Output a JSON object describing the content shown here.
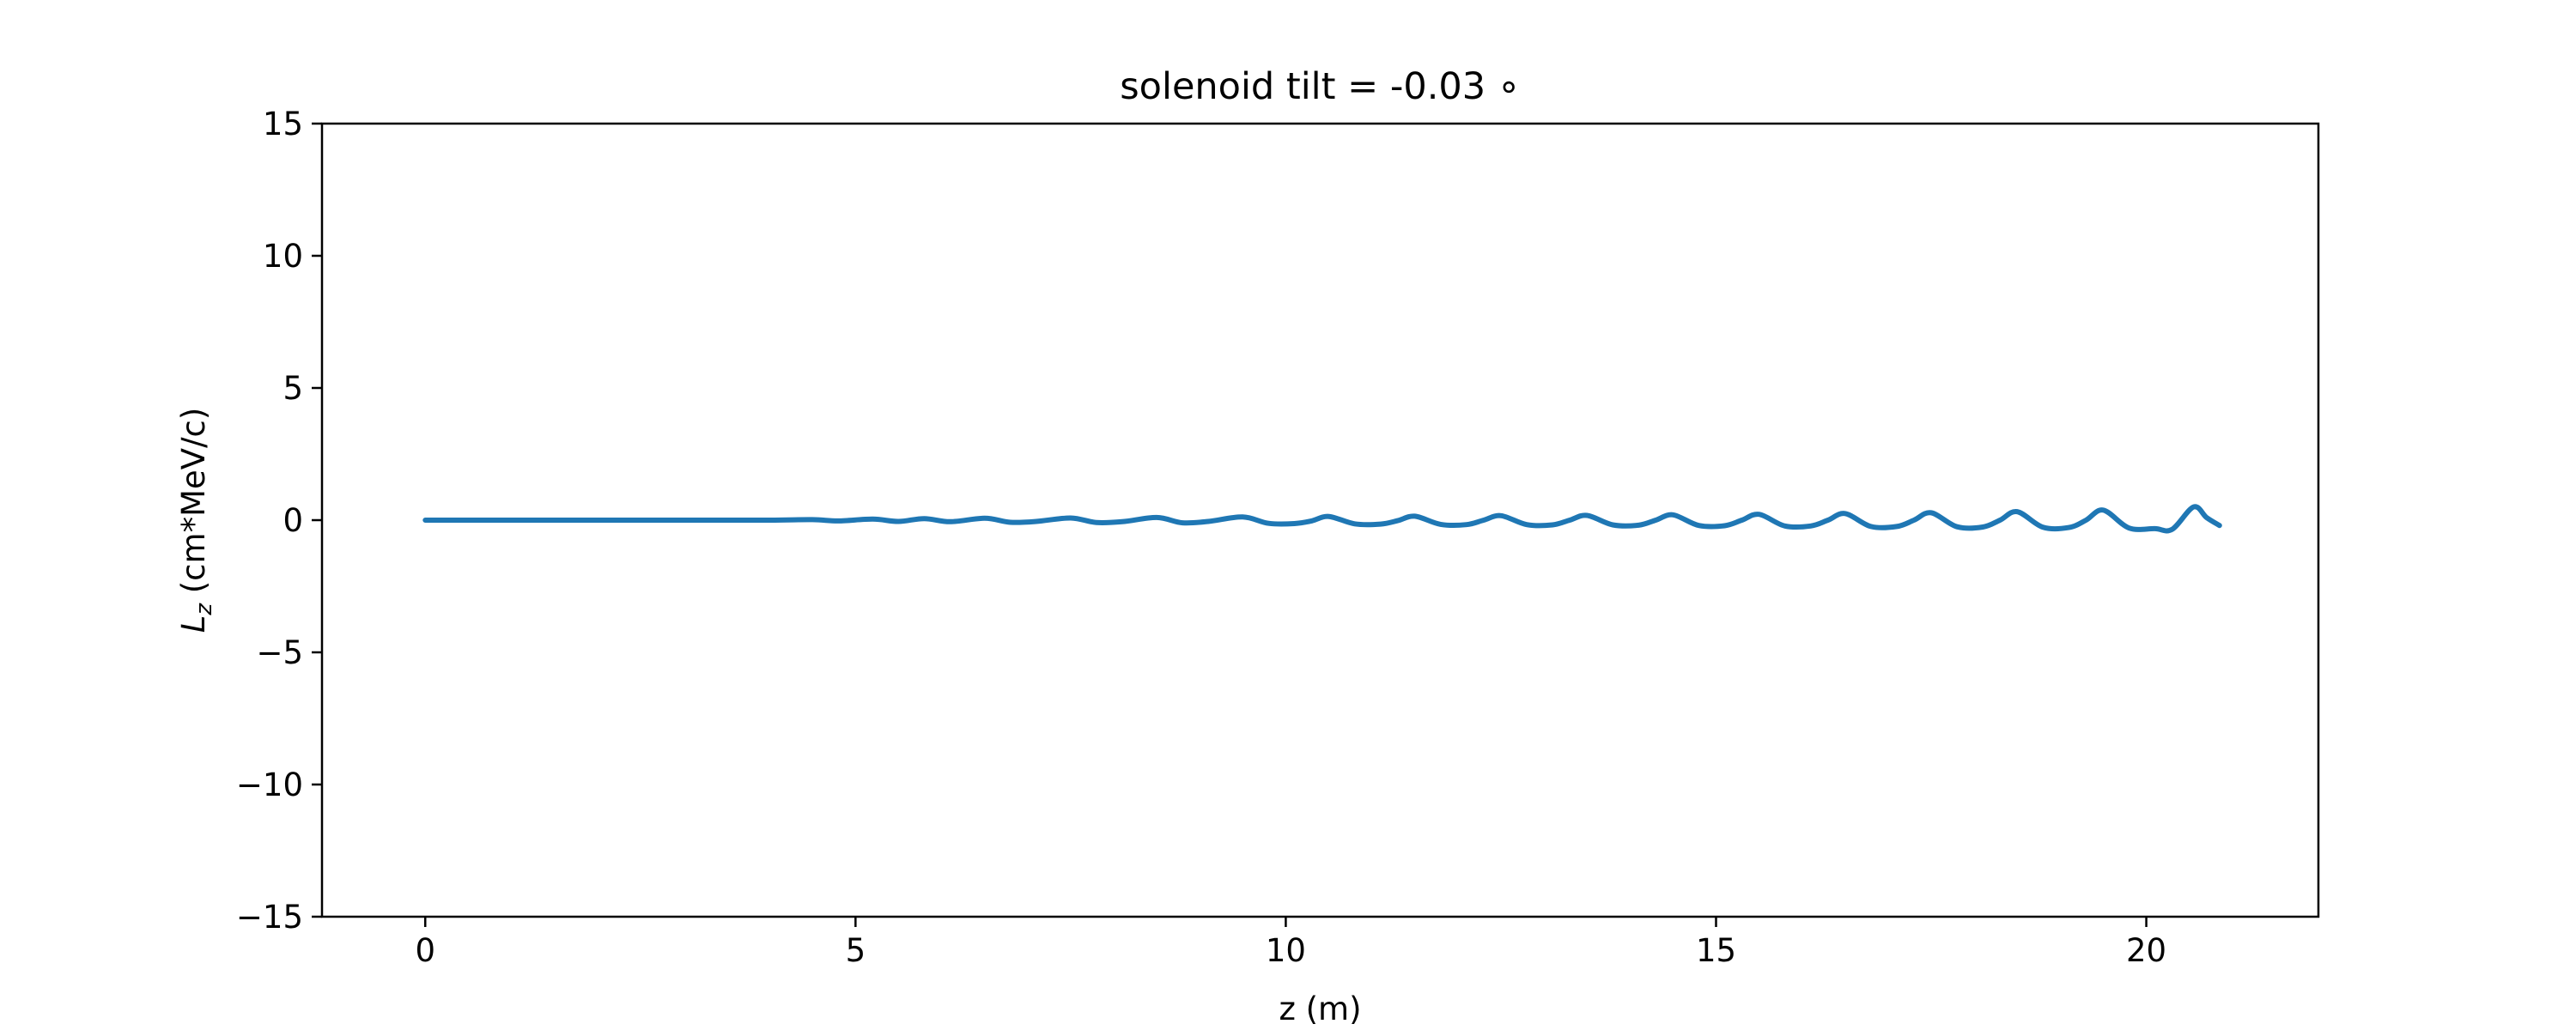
{
  "chart_data": {
    "type": "line",
    "title": "solenoid tilt = -0.03 ∘",
    "xlabel": "z (m)",
    "ylabel": {
      "symbol": "L",
      "subscript": "z",
      "unit": " (cm*MeV/c)"
    },
    "xlim": [
      -1.2,
      22.0
    ],
    "ylim": [
      -15,
      15
    ],
    "xticks": [
      0,
      5,
      10,
      15,
      20
    ],
    "xtick_labels": [
      "0",
      "5",
      "10",
      "15",
      "20"
    ],
    "yticks": [
      -15,
      -10,
      -5,
      0,
      5,
      10,
      15
    ],
    "ytick_labels": [
      "−15",
      "−10",
      "−5",
      "0",
      "5",
      "10",
      "15"
    ],
    "grid": false,
    "series": [
      {
        "color": "#1f77b4",
        "x": [
          0.0,
          1.0,
          2.0,
          3.0,
          4.0,
          4.5,
          4.8,
          5.2,
          5.5,
          5.8,
          6.1,
          6.5,
          6.8,
          7.1,
          7.5,
          7.8,
          8.1,
          8.5,
          8.8,
          9.1,
          9.5,
          9.8,
          10.1,
          10.3,
          10.5,
          10.8,
          11.1,
          11.3,
          11.5,
          11.8,
          12.1,
          12.3,
          12.5,
          12.8,
          13.1,
          13.3,
          13.5,
          13.8,
          14.1,
          14.3,
          14.5,
          14.8,
          15.1,
          15.3,
          15.5,
          15.8,
          16.1,
          16.3,
          16.5,
          16.8,
          17.1,
          17.3,
          17.5,
          17.8,
          18.1,
          18.3,
          18.5,
          18.8,
          19.1,
          19.3,
          19.5,
          19.8,
          20.1,
          20.3,
          20.55,
          20.7,
          20.85
        ],
        "y": [
          0.0,
          0.0,
          0.0,
          0.0,
          0.0,
          0.02,
          -0.03,
          0.04,
          -0.05,
          0.06,
          -0.06,
          0.07,
          -0.08,
          -0.05,
          0.08,
          -0.09,
          -0.06,
          0.1,
          -0.1,
          -0.05,
          0.12,
          -0.12,
          -0.13,
          -0.03,
          0.14,
          -0.14,
          -0.15,
          -0.02,
          0.15,
          -0.16,
          -0.17,
          0.0,
          0.17,
          -0.17,
          -0.18,
          0.0,
          0.18,
          -0.18,
          -0.19,
          0.0,
          0.2,
          -0.2,
          -0.21,
          0.0,
          0.22,
          -0.22,
          -0.22,
          0.0,
          0.25,
          -0.24,
          -0.24,
          0.0,
          0.28,
          -0.25,
          -0.26,
          0.0,
          0.32,
          -0.27,
          -0.28,
          0.0,
          0.38,
          -0.3,
          -0.32,
          -0.35,
          0.5,
          0.1,
          -0.2
        ]
      }
    ]
  }
}
